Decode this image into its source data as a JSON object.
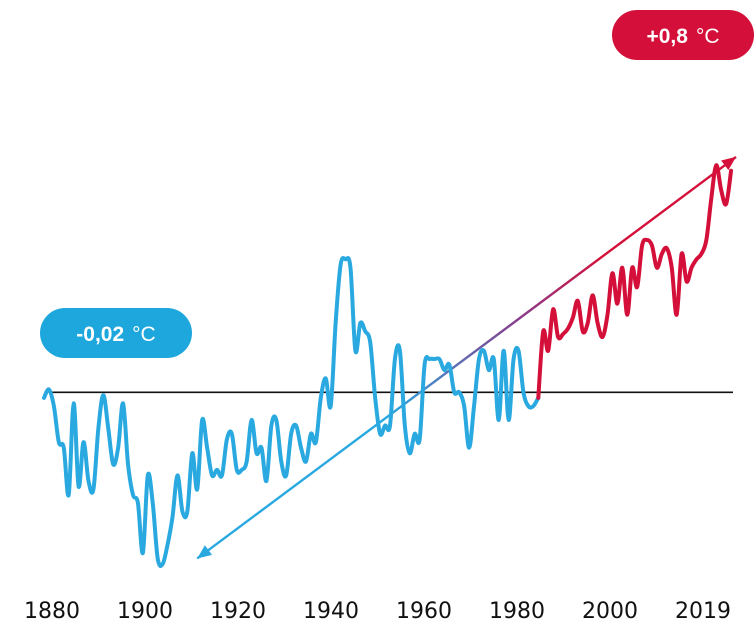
{
  "chart_data": {
    "type": "line",
    "title": "",
    "xlabel": "",
    "ylabel": "",
    "x_ticks": [
      "1880",
      "1900",
      "1920",
      "1940",
      "1960",
      "1980",
      "2000",
      "2019"
    ],
    "xlim": [
      1880,
      2020
    ],
    "ylim": [
      -0.75,
      1.2
    ],
    "baseline": 0,
    "grid": false,
    "annotations": {
      "start": {
        "value": "-0,02",
        "unit": "°C",
        "color": "#1ea7dc"
      },
      "end": {
        "value": "+0,8",
        "unit": "°C",
        "color": "#d4103a"
      }
    },
    "colors": {
      "early": "#29a9e0",
      "recent": "#d4103a",
      "baseline": "#111111"
    },
    "series": [
      {
        "x": [
          1880,
          1881,
          1882,
          1883,
          1884,
          1885,
          1886,
          1887,
          1888,
          1889,
          1890,
          1891,
          1892,
          1893,
          1894,
          1895,
          1896,
          1897,
          1898,
          1899,
          1900,
          1901,
          1902,
          1903,
          1904,
          1905,
          1906,
          1907,
          1908,
          1909,
          1910,
          1911,
          1912,
          1913,
          1914,
          1915,
          1916,
          1917,
          1918,
          1919,
          1920,
          1921,
          1922,
          1923,
          1924,
          1925,
          1926,
          1927,
          1928,
          1929,
          1930,
          1931,
          1932,
          1933,
          1934,
          1935,
          1936,
          1937,
          1938,
          1939,
          1940,
          1941,
          1942,
          1943,
          1944,
          1945,
          1946,
          1947,
          1948,
          1949,
          1950,
          1951,
          1952,
          1953,
          1954,
          1955,
          1956,
          1957,
          1958,
          1959,
          1960,
          1961,
          1962,
          1963,
          1964,
          1965,
          1966,
          1967,
          1968,
          1969,
          1970,
          1971,
          1972,
          1973,
          1974,
          1975,
          1976,
          1977,
          1978,
          1979,
          1980
        ],
        "values": [
          -0.02,
          0.01,
          -0.05,
          -0.18,
          -0.2,
          -0.37,
          -0.04,
          -0.34,
          -0.18,
          -0.32,
          -0.35,
          -0.13,
          -0.01,
          -0.13,
          -0.26,
          -0.2,
          -0.04,
          -0.26,
          -0.37,
          -0.4,
          -0.58,
          -0.3,
          -0.4,
          -0.6,
          -0.62,
          -0.55,
          -0.45,
          -0.3,
          -0.43,
          -0.43,
          -0.22,
          -0.35,
          -0.1,
          -0.2,
          -0.3,
          -0.28,
          -0.3,
          -0.17,
          -0.15,
          -0.28,
          -0.28,
          -0.25,
          -0.1,
          -0.22,
          -0.2,
          -0.32,
          -0.12,
          -0.1,
          -0.25,
          -0.3,
          -0.15,
          -0.12,
          -0.2,
          -0.25,
          -0.15,
          -0.18,
          -0.02,
          0.05,
          -0.05,
          0.25,
          0.46,
          0.48,
          0.45,
          0.15,
          0.25,
          0.22,
          0.18,
          -0.02,
          -0.15,
          -0.12,
          -0.12,
          0.12,
          0.15,
          -0.12,
          -0.22,
          -0.15,
          -0.17,
          0.1,
          0.12,
          0.12,
          0.12,
          0.08,
          0.1,
          0.0,
          0.0,
          -0.05,
          -0.2,
          -0.05,
          0.12,
          0.15,
          0.08,
          0.12,
          -0.1,
          0.15,
          -0.1,
          0.12,
          0.15,
          0.0,
          -0.05,
          -0.05,
          -0.02
        ]
      },
      {
        "x": [
          1980,
          1981,
          1982,
          1983,
          1984,
          1985,
          1986,
          1987,
          1988,
          1989,
          1990,
          1991,
          1992,
          1993,
          1994,
          1995,
          1996,
          1997,
          1998,
          1999,
          2000,
          2001,
          2002,
          2003,
          2004,
          2005,
          2006,
          2007,
          2008,
          2009,
          2010,
          2011,
          2012,
          2013,
          2014,
          2015,
          2016,
          2017,
          2018,
          2019
        ],
        "values": [
          -0.02,
          0.22,
          0.15,
          0.3,
          0.2,
          0.21,
          0.23,
          0.27,
          0.33,
          0.22,
          0.25,
          0.35,
          0.25,
          0.2,
          0.28,
          0.43,
          0.32,
          0.45,
          0.28,
          0.45,
          0.38,
          0.53,
          0.55,
          0.53,
          0.45,
          0.5,
          0.52,
          0.45,
          0.28,
          0.5,
          0.4,
          0.45,
          0.48,
          0.5,
          0.55,
          0.7,
          0.82,
          0.73,
          0.68,
          0.8
        ]
      }
    ],
    "trend": {
      "x": [
        1911,
        2020
      ],
      "values": [
        -0.6,
        0.85
      ]
    }
  }
}
